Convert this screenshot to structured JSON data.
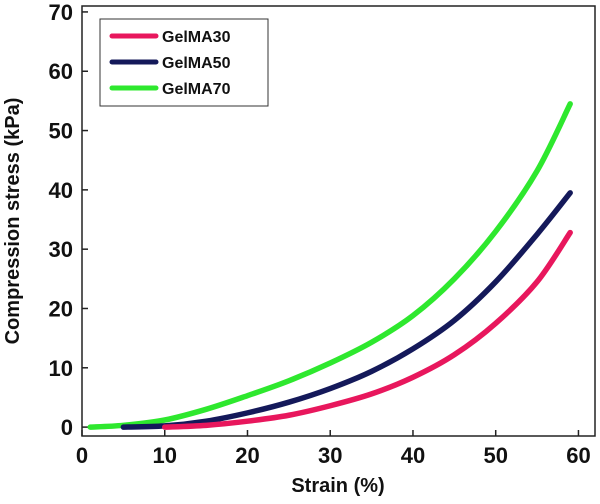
{
  "chart_data": {
    "type": "line",
    "title": "",
    "xlabel": "Strain (%)",
    "ylabel": "Compression stress (kPa)",
    "xlim": [
      0,
      62
    ],
    "ylim": [
      -1.5,
      71
    ],
    "xticks": [
      0,
      10,
      20,
      30,
      40,
      50,
      60
    ],
    "yticks": [
      0,
      10,
      20,
      30,
      40,
      50,
      60,
      70
    ],
    "xtick_labels": [
      "0",
      "10",
      "20",
      "30",
      "40",
      "50",
      "60"
    ],
    "ytick_labels": [
      "0",
      "10",
      "20",
      "30",
      "40",
      "50",
      "60",
      "70"
    ],
    "legend_position": "top-left",
    "grid": false,
    "series": [
      {
        "name": "GelMA30",
        "color": "#e8175d",
        "x": [
          10,
          15,
          20,
          25,
          30,
          35,
          40,
          45,
          50,
          55,
          59
        ],
        "y": [
          0,
          0.3,
          1,
          2,
          3.6,
          5.6,
          8.4,
          12.2,
          17.5,
          24.5,
          32.8
        ]
      },
      {
        "name": "GelMA50",
        "color": "#14195a",
        "x": [
          5,
          10,
          15,
          20,
          25,
          30,
          35,
          40,
          45,
          50,
          55,
          59
        ],
        "y": [
          0,
          0.2,
          1,
          2.4,
          4.2,
          6.5,
          9.4,
          13.2,
          18,
          24.5,
          32.5,
          39.5
        ]
      },
      {
        "name": "GelMA70",
        "color": "#2ee82e",
        "x": [
          1,
          5,
          10,
          15,
          20,
          25,
          30,
          35,
          40,
          45,
          50,
          55,
          59
        ],
        "y": [
          0,
          0.3,
          1.2,
          3,
          5.3,
          7.8,
          10.8,
          14.3,
          18.8,
          25,
          33,
          43.2,
          54.5
        ]
      }
    ]
  }
}
